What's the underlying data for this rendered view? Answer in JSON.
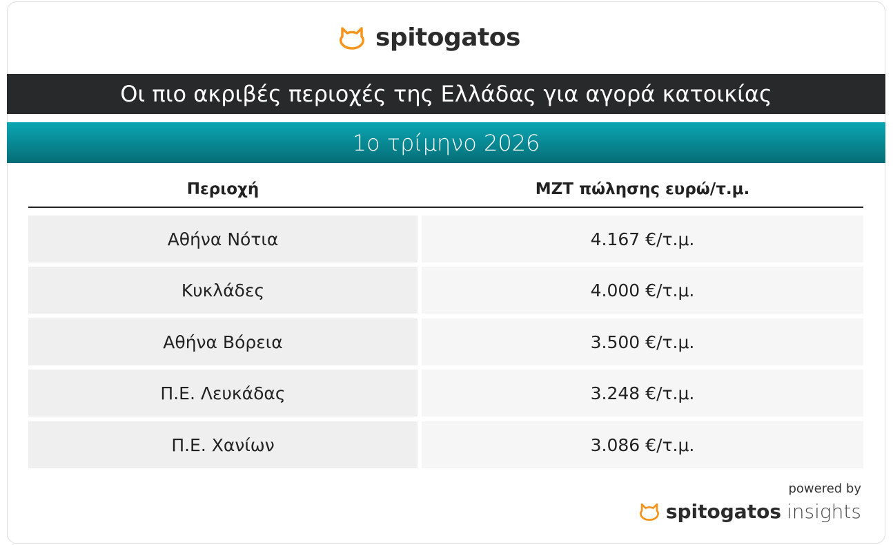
{
  "logo": {
    "text": "spitogatos",
    "accent": "#f7941d"
  },
  "title": "Οι πιο ακριβές περιοχές της Ελλάδας για αγορά κατοικίας",
  "subtitle": "1ο τρίμηνο 2026",
  "table": {
    "headers": [
      "Περιοχή",
      "ΜΖΤ πώλησης ευρώ/τ.μ."
    ],
    "rows": [
      {
        "area": "Αθήνα Νότια",
        "price": "4.167 €/τ.μ."
      },
      {
        "area": "Κυκλάδες",
        "price": "4.000 €/τ.μ."
      },
      {
        "area": "Αθήνα Βόρεια",
        "price": "3.500 €/τ.μ."
      },
      {
        "area": "Π.Ε. Λευκάδας",
        "price": "3.248 €/τ.μ."
      },
      {
        "area": "Π.Ε. Χανίων",
        "price": "3.086 €/τ.μ."
      }
    ]
  },
  "footer": {
    "powered_by": "powered by",
    "brand": "spitogatos",
    "product": "insights"
  }
}
